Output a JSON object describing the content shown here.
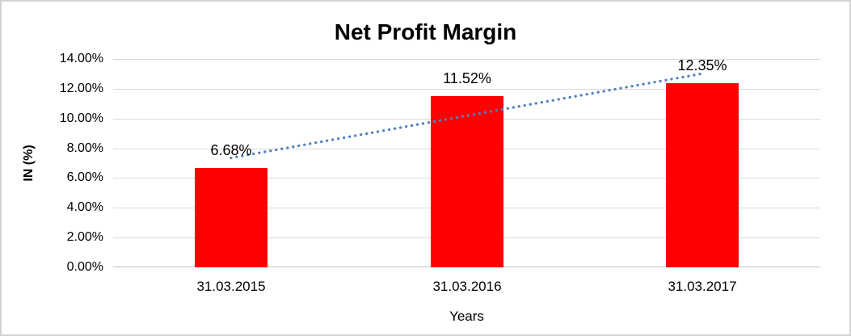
{
  "chart_data": {
    "type": "bar",
    "title": "Net Profit Margin",
    "xlabel": "Years",
    "ylabel": "IN (%)",
    "categories": [
      "31.03.2015",
      "31.03.2016",
      "31.03.2017"
    ],
    "values": [
      6.68,
      11.52,
      12.35
    ],
    "data_labels": [
      "6.68%",
      "11.52%",
      "12.35%"
    ],
    "y_ticks": [
      "0.00%",
      "2.00%",
      "4.00%",
      "6.00%",
      "8.00%",
      "10.00%",
      "12.00%",
      "14.00%"
    ],
    "ylim": [
      0,
      14
    ],
    "grid": true,
    "legend": false,
    "bar_color": "#FF0000",
    "trendline": {
      "type": "linear",
      "style": "dotted",
      "color": "#4F81BD",
      "start_value": 7.35,
      "end_value": 13.02
    },
    "colors": {
      "gridline": "#D9D9D9",
      "axis_line": "#C0C0C0",
      "text": "#000000",
      "frame_border": "#D2D2D2",
      "background": "#FFFFFF"
    }
  }
}
